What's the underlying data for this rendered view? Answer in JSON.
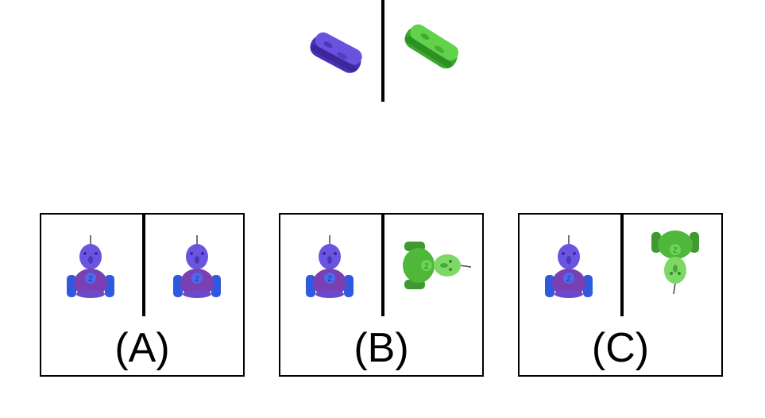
{
  "prompt": {
    "left_object": {
      "name": "sandwich",
      "color": "#5a3fd0"
    },
    "right_object": {
      "name": "sandwich",
      "color": "#4fc43a"
    }
  },
  "options": [
    {
      "label": "(A)",
      "left": {
        "name": "toy-robot",
        "color": "#6a4fe0",
        "view": "front"
      },
      "right": {
        "name": "toy-robot",
        "color": "#6a4fe0",
        "view": "front"
      }
    },
    {
      "label": "(B)",
      "left": {
        "name": "toy-robot",
        "color": "#6a4fe0",
        "view": "front"
      },
      "right": {
        "name": "toy-robot",
        "color": "#4fc43a",
        "view": "rotated-right"
      }
    },
    {
      "label": "(C)",
      "left": {
        "name": "toy-robot",
        "color": "#6a4fe0",
        "view": "front"
      },
      "right": {
        "name": "toy-robot",
        "color": "#4fc43a",
        "view": "rotated-down"
      }
    }
  ]
}
